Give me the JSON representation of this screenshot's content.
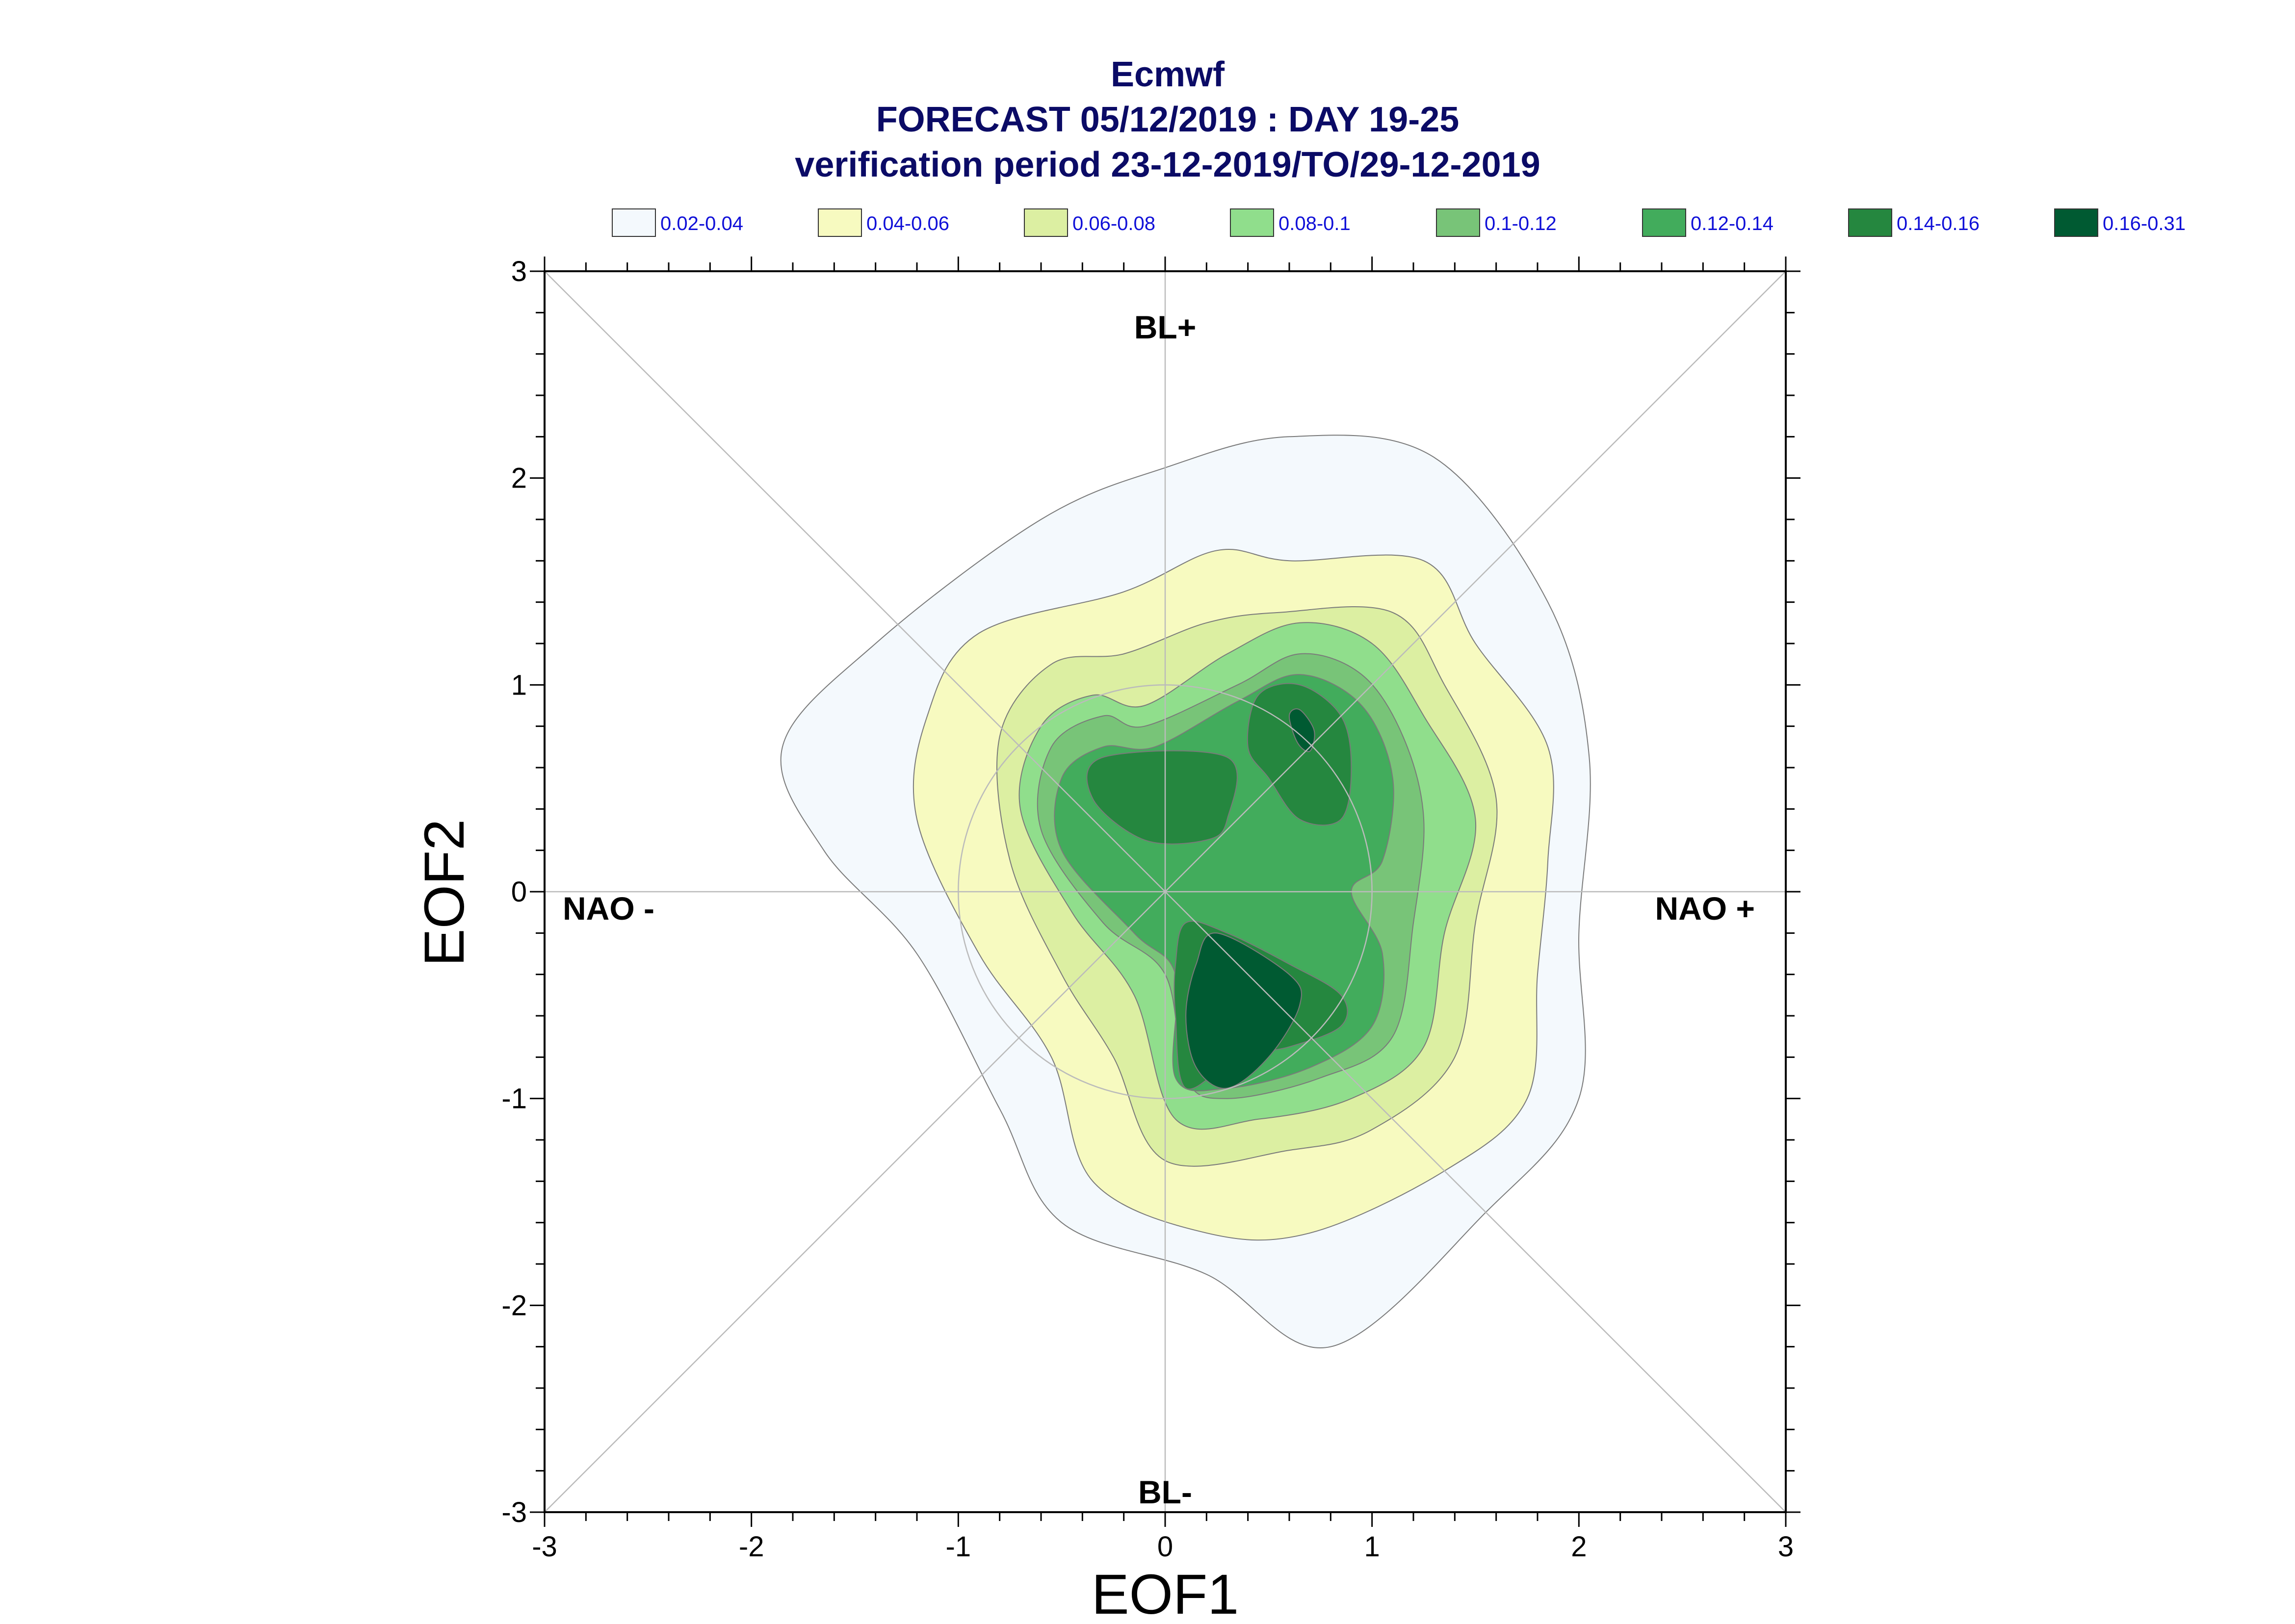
{
  "chart_data": {
    "type": "contour",
    "title_lines": [
      "Ecmwf",
      "FORECAST 05/12/2019 : DAY 19-25",
      "verification period 23-12-2019/TO/29-12-2019"
    ],
    "xlabel": "EOF1",
    "ylabel": "EOF2",
    "xlim": [
      -3,
      3
    ],
    "ylim": [
      -3,
      3
    ],
    "xticks": [
      "-3",
      "-2",
      "-1",
      "0",
      "1",
      "2",
      "3"
    ],
    "yticks": [
      "-3",
      "-2",
      "-1",
      "0",
      "1",
      "2",
      "3"
    ],
    "regime_labels": {
      "top": "BL+",
      "bottom": "BL-",
      "left": "NAO -",
      "right": "NAO +"
    },
    "legend": [
      {
        "label": "0.02-0.04",
        "color": "#f4f9fd"
      },
      {
        "label": "0.04-0.06",
        "color": "#f7fac0"
      },
      {
        "label": "0.06-0.08",
        "color": "#dcefa2"
      },
      {
        "label": "0.08-0.1",
        "color": "#90de8c"
      },
      {
        "label": "0.1-0.12",
        "color": "#78c478"
      },
      {
        "label": "0.12-0.14",
        "color": "#42ac5c"
      },
      {
        "label": "0.14-0.16",
        "color": "#25873f"
      },
      {
        "label": "0.16-0.31",
        "color": "#005a32"
      }
    ],
    "contours": [
      {
        "level": "0.02-0.04",
        "points": [
          [
            -0.6,
            1.8
          ],
          [
            0,
            2.05
          ],
          [
            0.6,
            2.2
          ],
          [
            1.3,
            2.1
          ],
          [
            1.85,
            1.4
          ],
          [
            2.05,
            0.65
          ],
          [
            2.0,
            -0.2
          ],
          [
            2.0,
            -1.0
          ],
          [
            1.55,
            -1.55
          ],
          [
            0.8,
            -2.2
          ],
          [
            0.2,
            -1.85
          ],
          [
            -0.5,
            -1.6
          ],
          [
            -0.8,
            -1.05
          ],
          [
            -1.2,
            -0.3
          ],
          [
            -1.65,
            0.2
          ],
          [
            -1.85,
            0.7
          ],
          [
            -1.4,
            1.2
          ]
        ]
      },
      {
        "level": "0.04-0.06",
        "points": [
          [
            -0.2,
            1.45
          ],
          [
            0.25,
            1.65
          ],
          [
            0.6,
            1.6
          ],
          [
            1.25,
            1.6
          ],
          [
            1.5,
            1.2
          ],
          [
            1.85,
            0.7
          ],
          [
            1.85,
            0.15
          ],
          [
            1.8,
            -0.4
          ],
          [
            1.75,
            -1.0
          ],
          [
            1.35,
            -1.35
          ],
          [
            0.7,
            -1.65
          ],
          [
            0.2,
            -1.65
          ],
          [
            -0.35,
            -1.4
          ],
          [
            -0.55,
            -0.8
          ],
          [
            -0.9,
            -0.3
          ],
          [
            -1.2,
            0.35
          ],
          [
            -1.15,
            0.85
          ],
          [
            -0.9,
            1.25
          ]
        ]
      },
      {
        "level": "0.06-0.08",
        "points": [
          [
            -0.2,
            1.15
          ],
          [
            0.2,
            1.3
          ],
          [
            0.55,
            1.35
          ],
          [
            1.1,
            1.35
          ],
          [
            1.35,
            1.0
          ],
          [
            1.6,
            0.45
          ],
          [
            1.5,
            -0.15
          ],
          [
            1.4,
            -0.8
          ],
          [
            1.0,
            -1.15
          ],
          [
            0.6,
            -1.25
          ],
          [
            0.0,
            -1.3
          ],
          [
            -0.25,
            -0.8
          ],
          [
            -0.5,
            -0.4
          ],
          [
            -0.75,
            0.15
          ],
          [
            -0.8,
            0.75
          ],
          [
            -0.55,
            1.1
          ]
        ]
      },
      {
        "level": "0.08-0.1",
        "points": [
          [
            -0.1,
            0.9
          ],
          [
            0.3,
            1.15
          ],
          [
            0.65,
            1.3
          ],
          [
            1.0,
            1.2
          ],
          [
            1.25,
            0.85
          ],
          [
            1.5,
            0.35
          ],
          [
            1.35,
            -0.2
          ],
          [
            1.25,
            -0.75
          ],
          [
            0.9,
            -1.0
          ],
          [
            0.45,
            -1.1
          ],
          [
            0.05,
            -1.1
          ],
          [
            -0.15,
            -0.5
          ],
          [
            -0.45,
            -0.1
          ],
          [
            -0.7,
            0.4
          ],
          [
            -0.6,
            0.8
          ],
          [
            -0.35,
            0.95
          ]
        ]
      },
      {
        "level": "0.1-0.12",
        "points": [
          [
            -0.1,
            0.8
          ],
          [
            0.35,
            1.0
          ],
          [
            0.65,
            1.15
          ],
          [
            0.95,
            1.05
          ],
          [
            1.15,
            0.75
          ],
          [
            1.25,
            0.35
          ],
          [
            1.2,
            -0.15
          ],
          [
            1.1,
            -0.7
          ],
          [
            0.75,
            -0.9
          ],
          [
            0.3,
            -1.0
          ],
          [
            0.1,
            -0.9
          ],
          [
            0.0,
            -0.4
          ],
          [
            -0.3,
            -0.15
          ],
          [
            -0.6,
            0.3
          ],
          [
            -0.55,
            0.7
          ],
          [
            -0.3,
            0.85
          ]
        ]
      },
      {
        "level": "0.12-0.14",
        "points": [
          [
            -0.05,
            0.7
          ],
          [
            0.35,
            0.92
          ],
          [
            0.65,
            1.05
          ],
          [
            0.95,
            0.9
          ],
          [
            1.1,
            0.55
          ],
          [
            1.05,
            0.15
          ],
          [
            0.9,
            0.0
          ],
          [
            1.05,
            -0.3
          ],
          [
            1.0,
            -0.65
          ],
          [
            0.7,
            -0.85
          ],
          [
            0.3,
            -0.95
          ],
          [
            0.05,
            -0.9
          ],
          [
            0.05,
            -0.4
          ],
          [
            -0.15,
            -0.2
          ],
          [
            -0.5,
            0.2
          ],
          [
            -0.5,
            0.55
          ],
          [
            -0.3,
            0.7
          ]
        ]
      },
      {
        "level": "0.14-0.16",
        "points": [
          [
            0.4,
            0.7
          ],
          [
            0.45,
            0.95
          ],
          [
            0.65,
            1.0
          ],
          [
            0.85,
            0.85
          ],
          [
            0.9,
            0.6
          ],
          [
            0.85,
            0.35
          ],
          [
            0.65,
            0.35
          ],
          [
            0.5,
            0.55
          ]
        ]
      },
      {
        "level": "0.14-0.16",
        "points": [
          [
            -0.3,
            0.65
          ],
          [
            0.3,
            0.65
          ],
          [
            0.3,
            0.35
          ],
          [
            0.2,
            0.25
          ],
          [
            -0.1,
            0.25
          ],
          [
            -0.35,
            0.45
          ]
        ]
      },
      {
        "level": "0.14-0.16",
        "points": [
          [
            0.1,
            -0.15
          ],
          [
            0.3,
            -0.2
          ],
          [
            0.6,
            -0.35
          ],
          [
            0.85,
            -0.5
          ],
          [
            0.85,
            -0.65
          ],
          [
            0.6,
            -0.75
          ],
          [
            0.35,
            -0.8
          ],
          [
            0.1,
            -0.95
          ],
          [
            0.05,
            -0.6
          ],
          [
            0.05,
            -0.35
          ]
        ]
      },
      {
        "level": "0.16-0.31",
        "points": [
          [
            0.25,
            -0.2
          ],
          [
            0.6,
            -0.4
          ],
          [
            0.65,
            -0.55
          ],
          [
            0.5,
            -0.8
          ],
          [
            0.3,
            -0.95
          ],
          [
            0.15,
            -0.85
          ],
          [
            0.1,
            -0.6
          ],
          [
            0.15,
            -0.35
          ]
        ]
      },
      {
        "level": "0.16-0.31",
        "points": [
          [
            0.6,
            0.85
          ],
          [
            0.65,
            0.88
          ],
          [
            0.72,
            0.78
          ],
          [
            0.7,
            0.68
          ],
          [
            0.64,
            0.72
          ]
        ]
      }
    ]
  }
}
